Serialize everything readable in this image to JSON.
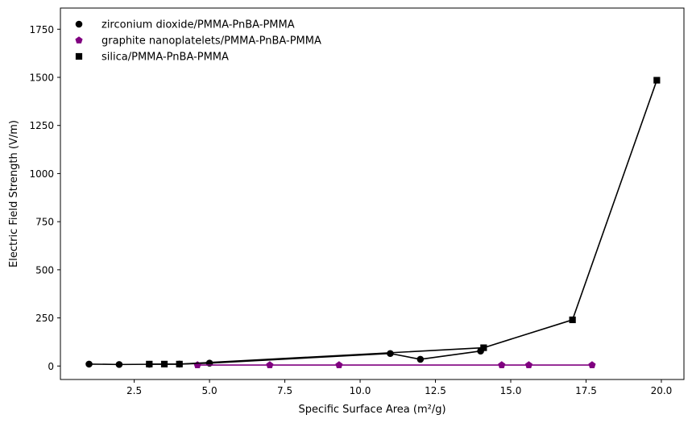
{
  "chart_data": {
    "type": "line",
    "title": "",
    "xlabel": "Specific Surface Area (m²/g)",
    "ylabel": "Electric Field Strength (V/m)",
    "xlim": [
      0.05,
      20.75
    ],
    "ylim": [
      -70,
      1860
    ],
    "xticks": [
      2.5,
      5.0,
      7.5,
      10.0,
      12.5,
      15.0,
      17.5,
      20.0
    ],
    "xtick_labels": [
      "2.5",
      "5.0",
      "7.5",
      "10.0",
      "12.5",
      "15.0",
      "17.5",
      "20.0"
    ],
    "yticks": [
      0,
      250,
      500,
      750,
      1000,
      1250,
      1500,
      1750
    ],
    "ytick_labels": [
      "0",
      "250",
      "500",
      "750",
      "1000",
      "1250",
      "1500",
      "1750"
    ],
    "grid": false,
    "legend_position": "top-left",
    "series": [
      {
        "name": "zirconium dioxide/PMMA-PnBA-PMMA",
        "marker": "circle",
        "color": "#000000",
        "x": [
          1.0,
          2.0,
          3.0,
          4.0,
          5.0,
          11.0,
          12.0,
          14.0
        ],
        "y": [
          10,
          8,
          9,
          10,
          15,
          65,
          35,
          78
        ]
      },
      {
        "name": "graphite nanoplatelets/PMMA-PnBA-PMMA",
        "marker": "pentagon",
        "color": "#800080",
        "x": [
          4.6,
          7.0,
          9.3,
          14.7,
          15.6,
          17.7
        ],
        "y": [
          5,
          5,
          5,
          5,
          5,
          5
        ]
      },
      {
        "name": "silica/PMMA-PnBA-PMMA",
        "marker": "square",
        "color": "#000000",
        "x": [
          3.0,
          3.5,
          4.0,
          14.1,
          17.05,
          19.85
        ],
        "y": [
          10,
          10,
          10,
          95,
          240,
          1485
        ]
      }
    ]
  }
}
